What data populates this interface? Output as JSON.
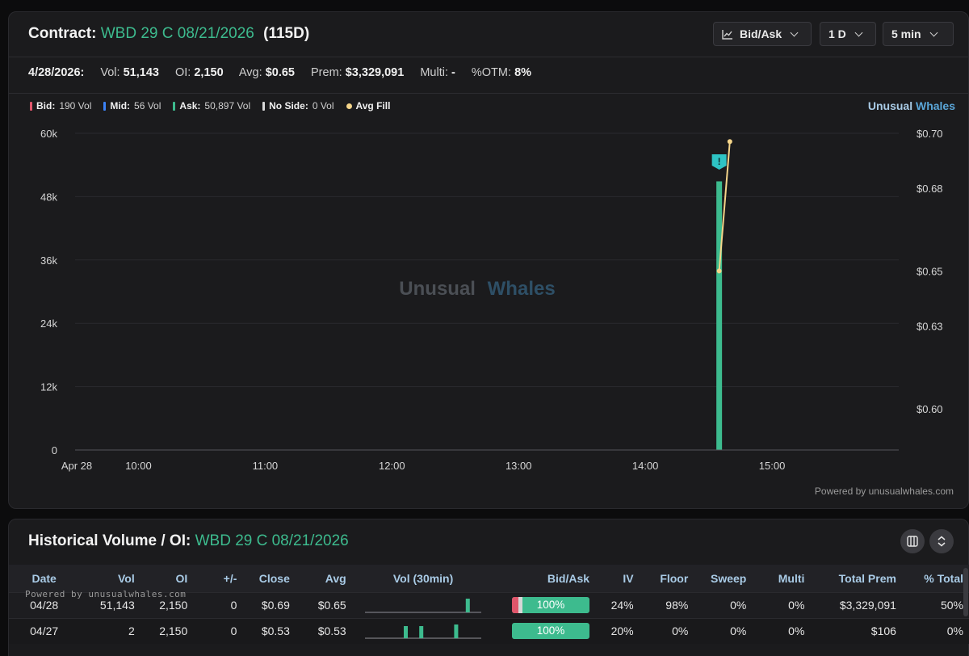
{
  "header": {
    "contract_label": "Contract:",
    "contract_name": "WBD 29 C 08/21/2026",
    "dte": "(115D)",
    "controls": {
      "chart_mode": "Bid/Ask",
      "range": "1 D",
      "interval": "5 min"
    }
  },
  "stats": {
    "date": "4/28/2026:",
    "vol_label": "Vol:",
    "vol": "51,143",
    "oi_label": "OI:",
    "oi": "2,150",
    "avg_label": "Avg:",
    "avg": "$0.65",
    "prem_label": "Prem:",
    "prem": "$3,329,091",
    "multi_label": "Multi:",
    "multi": "-",
    "otm_label": "%OTM:",
    "otm": "8%"
  },
  "legend": {
    "bid_label": "Bid:",
    "bid": "190 Vol",
    "mid_label": "Mid:",
    "mid": "56 Vol",
    "ask_label": "Ask:",
    "ask": "50,897 Vol",
    "noside_label": "No Side:",
    "noside": "0 Vol",
    "avgfill_label": "Avg Fill"
  },
  "brand": {
    "part1": "Unusual",
    "part2": "Whales"
  },
  "watermark": {
    "part1": "Unusual",
    "part2": "Whales"
  },
  "colors": {
    "bid": "#e0566b",
    "mid": "#3b82f6",
    "ask": "#3dbb8e",
    "noside": "#d9d9d9",
    "avg_fill": "#f5d58a",
    "alert": "#2ec4c4"
  },
  "chart_data": {
    "type": "bar",
    "x_ticks": [
      "Apr 28",
      "10:00",
      "11:00",
      "12:00",
      "13:00",
      "14:00",
      "15:00"
    ],
    "y_left_ticks": [
      "0",
      "12k",
      "24k",
      "36k",
      "48k",
      "60k"
    ],
    "y_left_lim": [
      0,
      60000
    ],
    "y_right_ticks": [
      "$0.60",
      "$0.63",
      "$0.65",
      "$0.68",
      "$0.70"
    ],
    "y_right_lim": [
      0.585,
      0.7
    ],
    "x_lim_hours": [
      9.5,
      16.0
    ],
    "bars": [
      {
        "time": "14:35",
        "hour": 14.583,
        "ask": 50897
      }
    ],
    "avg_fill": [
      {
        "time": "14:35",
        "hour": 14.583,
        "price": 0.65
      },
      {
        "time": "14:40",
        "hour": 14.667,
        "price": 0.697
      }
    ],
    "alert_marker": {
      "time": "14:35",
      "hour": 14.583,
      "symbol": "!"
    },
    "grid": true
  },
  "powered_top": "Powered by unusualwhales.com",
  "historical": {
    "title_label": "Historical Volume / OI:",
    "title_contract": "WBD 29 C 08/21/2026",
    "powered": "Powered by unusualwhales.com",
    "columns": [
      "Date",
      "Vol",
      "OI",
      "+/-",
      "Close",
      "Avg",
      "Vol (30min)",
      "Bid/Ask",
      "IV",
      "Floor",
      "Sweep",
      "Multi",
      "Total Prem",
      "% Total"
    ],
    "rows": [
      {
        "date": "04/28",
        "vol": "51,143",
        "oi": "2,150",
        "chg": "0",
        "close": "$0.69",
        "avg": "$0.65",
        "spark": [
          0,
          0,
          0,
          0,
          0,
          0,
          0,
          0,
          0,
          0,
          0,
          0,
          0,
          0,
          0,
          0,
          0,
          0,
          0,
          0,
          0,
          0,
          0,
          0,
          0,
          0,
          1,
          0,
          0,
          0
        ],
        "bidask_pct": "100%",
        "bid_share": 0.08,
        "mid_share": 0.05,
        "iv": "24%",
        "floor": "98%",
        "sweep": "0%",
        "multi": "0%",
        "total_prem": "$3,329,091",
        "pct_total": "50%"
      },
      {
        "date": "04/27",
        "vol": "2",
        "oi": "2,150",
        "chg": "0",
        "close": "$0.53",
        "avg": "$0.53",
        "spark": [
          0,
          0,
          0,
          0,
          0,
          0,
          0,
          0,
          0,
          0,
          0,
          0,
          0,
          0,
          0,
          0,
          0,
          0,
          0,
          0,
          0,
          0,
          0,
          1,
          0,
          0,
          0,
          0,
          0,
          0
        ],
        "bidask_pct": "100%",
        "bid_share": 0,
        "mid_share": 0,
        "iv": "20%",
        "floor": "0%",
        "sweep": "0%",
        "multi": "0%",
        "total_prem": "$106",
        "pct_total": "0%"
      }
    ]
  }
}
